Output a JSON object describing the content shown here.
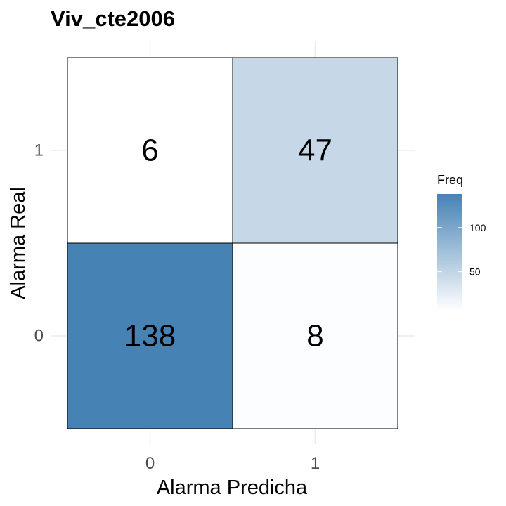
{
  "chart_data": {
    "type": "heatmap",
    "title": "Viv_cte2006",
    "xlabel": "Alarma Predicha",
    "ylabel": "Alarma Real",
    "x_categories": [
      "0",
      "1"
    ],
    "y_categories": [
      "0",
      "1"
    ],
    "cells": [
      {
        "x": "0",
        "y": "1",
        "value": 6
      },
      {
        "x": "1",
        "y": "1",
        "value": 47
      },
      {
        "x": "0",
        "y": "0",
        "value": 138
      },
      {
        "x": "1",
        "y": "0",
        "value": 8
      }
    ],
    "legend": {
      "title": "Freq",
      "ticks": [
        50,
        100
      ],
      "range": [
        6,
        138
      ],
      "low_color": "#ffffff",
      "high_color": "#4682b4"
    },
    "grid": true
  }
}
